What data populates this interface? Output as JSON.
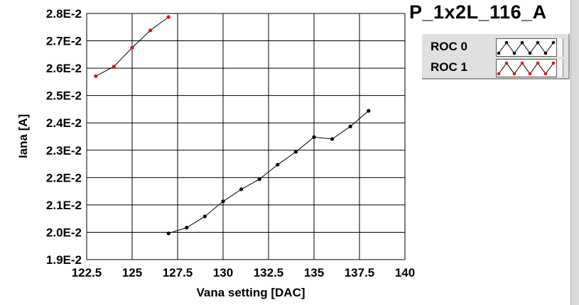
{
  "title": "P_1x2L_116_A",
  "legend": [
    {
      "name": "ROC 0",
      "color": "#000000"
    },
    {
      "name": "ROC 1",
      "color": "#ff0000"
    }
  ],
  "chart_data": {
    "type": "line",
    "xlabel": "Vana setting [DAC]",
    "ylabel": "Iana [A]",
    "xlim": [
      122.5,
      140
    ],
    "ylim": [
      0.019,
      0.028
    ],
    "xticks": [
      122.5,
      125,
      127.5,
      130,
      132.5,
      135,
      137.5,
      140
    ],
    "xtick_labels": [
      "122.5",
      "125",
      "127.5",
      "130",
      "132.5",
      "135",
      "137.5",
      "140"
    ],
    "yticks": [
      0.019,
      0.02,
      0.021,
      0.022,
      0.023,
      0.024,
      0.025,
      0.026,
      0.027,
      0.028
    ],
    "ytick_labels": [
      "1.9E-2",
      "2.0E-2",
      "2.1E-2",
      "2.2E-2",
      "2.3E-2",
      "2.4E-2",
      "2.5E-2",
      "2.6E-2",
      "2.7E-2",
      "2.8E-2"
    ],
    "grid": true,
    "legend_position": "top-right",
    "series": [
      {
        "name": "ROC 0",
        "color": "#000000",
        "x": [
          127,
          128,
          129,
          130,
          131,
          132,
          133,
          134,
          135,
          136,
          137,
          138
        ],
        "y": [
          0.01996,
          0.02017,
          0.02058,
          0.02113,
          0.02157,
          0.02194,
          0.02247,
          0.02294,
          0.02348,
          0.02341,
          0.02387,
          0.02444
        ]
      },
      {
        "name": "ROC 1",
        "color": "#ff0000",
        "x": [
          123,
          124,
          125,
          126,
          127
        ],
        "y": [
          0.02571,
          0.02606,
          0.02675,
          0.02738,
          0.02787
        ]
      }
    ]
  }
}
